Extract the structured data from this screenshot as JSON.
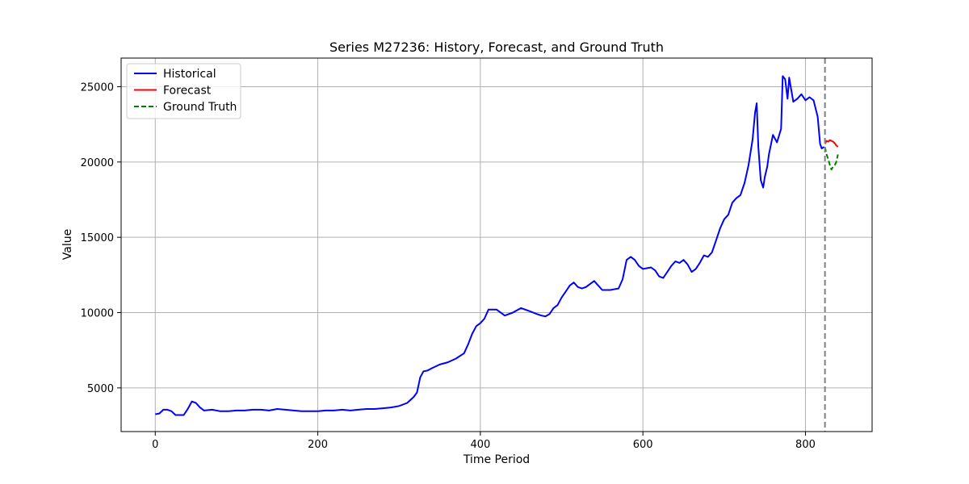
{
  "chart_data": {
    "type": "line",
    "title": "Series M27236: History, Forecast, and Ground Truth",
    "xlabel": "Time Period",
    "ylabel": "Value",
    "xlim": [
      -42,
      882
    ],
    "ylim": [
      2100,
      26900
    ],
    "xticks": [
      0,
      200,
      400,
      600,
      800
    ],
    "yticks": [
      5000,
      10000,
      15000,
      20000,
      25000
    ],
    "grid": true,
    "legend_position": "upper-left",
    "forecast_start_marker": 824,
    "series": [
      {
        "name": "Historical",
        "color": "#0000ff",
        "style": "solid",
        "x": [
          0,
          5,
          10,
          15,
          20,
          25,
          30,
          35,
          40,
          45,
          50,
          55,
          60,
          70,
          80,
          90,
          100,
          110,
          120,
          130,
          140,
          150,
          160,
          170,
          180,
          190,
          200,
          210,
          220,
          230,
          240,
          250,
          260,
          270,
          280,
          290,
          300,
          310,
          318,
          322,
          326,
          330,
          335,
          340,
          350,
          360,
          370,
          380,
          385,
          390,
          395,
          400,
          405,
          410,
          420,
          430,
          440,
          450,
          460,
          470,
          475,
          480,
          485,
          490,
          495,
          500,
          505,
          510,
          515,
          520,
          525,
          530,
          540,
          550,
          560,
          570,
          575,
          580,
          585,
          590,
          595,
          600,
          610,
          615,
          620,
          625,
          630,
          635,
          640,
          645,
          650,
          655,
          660,
          665,
          670,
          675,
          680,
          685,
          690,
          695,
          700,
          705,
          710,
          715,
          720,
          725,
          730,
          735,
          738,
          740,
          742,
          745,
          748,
          750,
          753,
          755,
          760,
          765,
          770,
          772,
          775,
          778,
          780,
          785,
          790,
          795,
          800,
          805,
          810,
          815,
          818,
          820,
          823
        ],
        "y": [
          3250,
          3300,
          3550,
          3550,
          3450,
          3200,
          3200,
          3200,
          3600,
          4100,
          4000,
          3700,
          3500,
          3550,
          3450,
          3450,
          3500,
          3500,
          3550,
          3550,
          3500,
          3600,
          3550,
          3500,
          3450,
          3450,
          3450,
          3500,
          3500,
          3550,
          3500,
          3550,
          3600,
          3600,
          3650,
          3700,
          3800,
          4000,
          4400,
          4700,
          5700,
          6100,
          6150,
          6300,
          6550,
          6700,
          6950,
          7300,
          7900,
          8600,
          9100,
          9300,
          9600,
          10200,
          10200,
          9800,
          10000,
          10300,
          10100,
          9900,
          9800,
          9750,
          9900,
          10300,
          10500,
          11000,
          11400,
          11800,
          12000,
          11700,
          11600,
          11700,
          12100,
          11500,
          11500,
          11600,
          12200,
          13500,
          13700,
          13500,
          13100,
          12900,
          13000,
          12800,
          12400,
          12300,
          12700,
          13100,
          13400,
          13300,
          13500,
          13200,
          12700,
          12900,
          13300,
          13800,
          13700,
          14000,
          14800,
          15600,
          16200,
          16500,
          17300,
          17600,
          17800,
          18600,
          19800,
          21500,
          23300,
          23900,
          21000,
          18800,
          18300,
          19000,
          19700,
          20500,
          21800,
          21300,
          22200,
          25700,
          25500,
          24200,
          25600,
          24000,
          24200,
          24500,
          24100,
          24300,
          24100,
          23000,
          21200,
          20900,
          21000
        ]
      },
      {
        "name": "Forecast",
        "color": "#ff0000",
        "style": "solid",
        "x": [
          824,
          826,
          828,
          830,
          832,
          834,
          836,
          838,
          840
        ],
        "y": [
          21200,
          21400,
          21350,
          21450,
          21400,
          21350,
          21250,
          21100,
          21000
        ]
      },
      {
        "name": "Ground Truth",
        "color": "#008000",
        "style": "dashed",
        "x": [
          824,
          826,
          828,
          830,
          832,
          834,
          836,
          838,
          840
        ],
        "y": [
          21000,
          20500,
          20200,
          19800,
          19500,
          19700,
          19800,
          20000,
          20500
        ]
      }
    ]
  }
}
